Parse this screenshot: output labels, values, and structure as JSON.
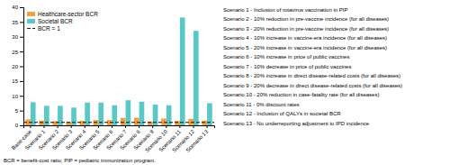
{
  "chart_data": {
    "type": "bar",
    "categories": [
      "Base-case",
      "Scenario 1",
      "Scenario 2",
      "Scenario 3",
      "Scenario 4",
      "Scenario 5",
      "Scenario 6",
      "Scenario 7",
      "Scenario 8",
      "Scenario 9",
      "Scenario 10",
      "Scenario 11",
      "Scenario 12",
      "Scenario 13"
    ],
    "series": [
      {
        "name": "Healthcare-sector BCR",
        "color": "#F4A03A",
        "values": [
          2.0,
          1.6,
          1.4,
          1.2,
          1.5,
          1.8,
          1.8,
          2.5,
          2.6,
          1.3,
          2.3,
          1.5,
          2.2,
          1.6
        ]
      },
      {
        "name": "Societal BCR",
        "color": "#5BC8C8",
        "values": [
          7.8,
          6.6,
          6.6,
          6.0,
          7.7,
          7.7,
          6.8,
          8.5,
          8.0,
          7.0,
          6.8,
          36.5,
          32.0,
          7.5
        ]
      }
    ],
    "hlines": [
      {
        "y": 1,
        "name": "BCR = 1",
        "color": "#111111",
        "line_style": "dashed"
      }
    ],
    "ylim": [
      0,
      40
    ],
    "yticks": [
      0,
      5,
      10,
      15,
      20,
      25,
      30,
      35,
      40
    ],
    "grid": false,
    "legend": "upper left",
    "annotations": [
      "Scenario 1 - Inclusion of rotavirus vaccination in PIP",
      "Scenario 2 - 10% reduction in pre-vaccine incidence (for all diseases)",
      "Scenario 3 - 20% reduction in pre-vaccine incidence (for all diseases)",
      "Scenario 4 - 10% increase in vaccine-era incidence (for all diseases)",
      "Scenario 5 - 20% increase in vaccine-era incidence (for all diseases)",
      "Scenario 6 - 10% increase in price of public vaccines",
      "Scenario 7 - 10% decrease in price of public vaccines",
      "Scenario 8 - 20% increase in direct disease-related costs (for all diseases)",
      "Scenario 9 - 20% decrease in direct disease-related costs (for all diseases)",
      "Scenario 10 - 20% reduction in case-fatality rate (for all diseases)",
      "Scenario 11 - 0% discount rates",
      "Scenario 12 - Inclusion of QALYs in societal BCR",
      "Scenario 13 - No underreporting adjustment to IPD incidence"
    ],
    "footnote": "BCR = benefit-cost ratio; PIP = pediatric immunization program."
  }
}
